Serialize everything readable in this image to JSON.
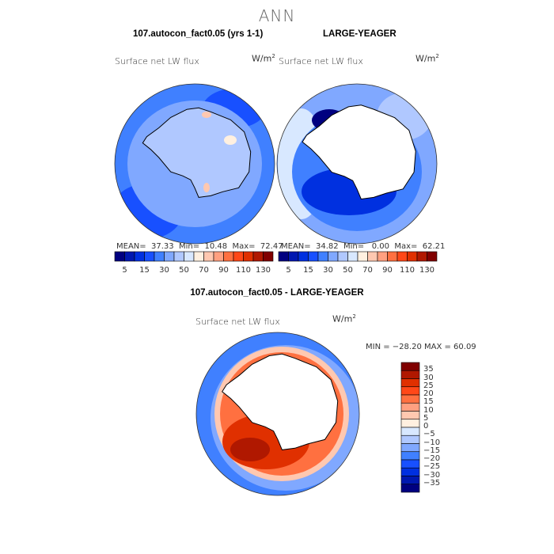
{
  "title": "ANN",
  "panels": [
    {
      "title": "107.autocon_fact0.05 (yrs 1-1)",
      "subtitle": "Surface net LW flux",
      "units": "W/m",
      "units_sup": "2",
      "mean_label": "MEAN=",
      "mean": "37.33",
      "min_label": "Min=",
      "min": "10.48",
      "max_label": "Max=",
      "max": "72.47"
    },
    {
      "title": "LARGE-YEAGER",
      "subtitle": "Surface net LW flux",
      "units": "W/m",
      "units_sup": "2",
      "mean_label": "MEAN=",
      "mean": "34.82",
      "min_label": "Min=",
      "min": "0.00",
      "max_label": "Max=",
      "max": "62.21"
    },
    {
      "title": "107.autocon_fact0.05 - LARGE-YEAGER",
      "subtitle": "Surface net LW flux",
      "units": "W/m",
      "units_sup": "2",
      "minmax": "MIN = −28.20 MAX =  60.09"
    }
  ],
  "colorbar_top": {
    "colors": [
      "#000080",
      "#0018b0",
      "#0030e0",
      "#1850ff",
      "#4080ff",
      "#80a8ff",
      "#b0c8ff",
      "#d8e8ff",
      "#fff0e0",
      "#ffc8b0",
      "#ffa080",
      "#ff7040",
      "#ff4818",
      "#e03000",
      "#b01800",
      "#800000"
    ],
    "labels": [
      "5",
      "15",
      "30",
      "50",
      "70",
      "90",
      "110",
      "130"
    ]
  },
  "colorbar_diff": {
    "colors": [
      "#800000",
      "#b01800",
      "#e03000",
      "#ff4818",
      "#ff7040",
      "#ffa080",
      "#ffc8b0",
      "#fff0e0",
      "#d8e8ff",
      "#b0c8ff",
      "#80a8ff",
      "#4080ff",
      "#1850ff",
      "#0030e0",
      "#0018b0",
      "#000080"
    ],
    "labels": [
      "35",
      "30",
      "25",
      "20",
      "15",
      "10",
      "5",
      "0",
      "−5",
      "−10",
      "−15",
      "−20",
      "−25",
      "−30",
      "−35"
    ]
  }
}
